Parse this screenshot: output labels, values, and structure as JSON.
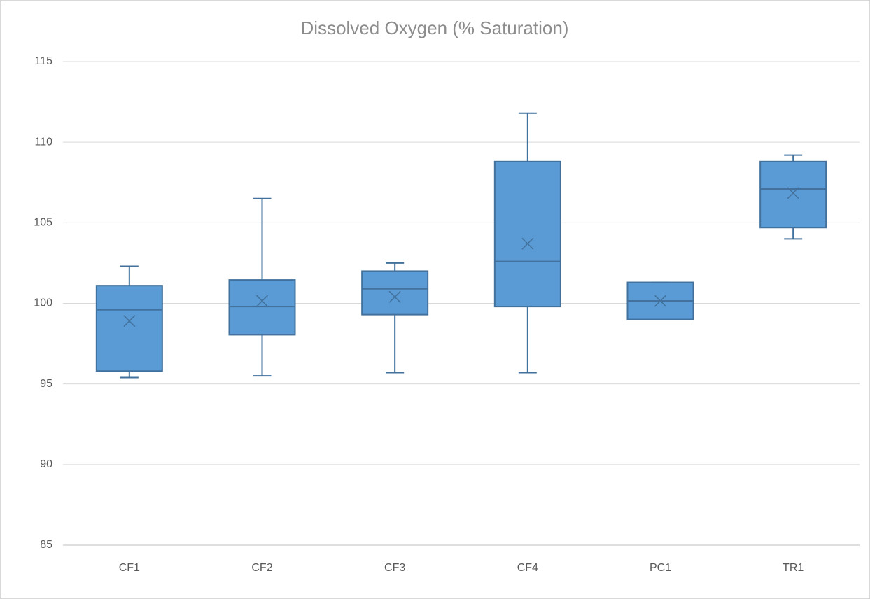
{
  "chart_data": {
    "type": "box",
    "title": "Dissolved Oxygen (% Saturation)",
    "categories": [
      "CF1",
      "CF2",
      "CF3",
      "CF4",
      "PC1",
      "TR1"
    ],
    "min": [
      95.4,
      95.5,
      95.7,
      95.7,
      99.0,
      104.0
    ],
    "q1": [
      95.8,
      98.05,
      99.3,
      99.8,
      99.0,
      104.7
    ],
    "median": [
      99.6,
      99.8,
      100.9,
      102.6,
      100.15,
      107.1
    ],
    "q3": [
      101.1,
      101.45,
      102.0,
      108.8,
      101.3,
      108.8
    ],
    "max": [
      102.3,
      106.5,
      102.5,
      111.8,
      101.3,
      109.2
    ],
    "mean": [
      98.9,
      100.15,
      100.4,
      103.7,
      100.15,
      106.85
    ],
    "color": "#5b9bd5",
    "ylim": [
      85,
      115
    ],
    "yticks": [
      85,
      90,
      95,
      100,
      105,
      110,
      115
    ],
    "grid": true
  }
}
